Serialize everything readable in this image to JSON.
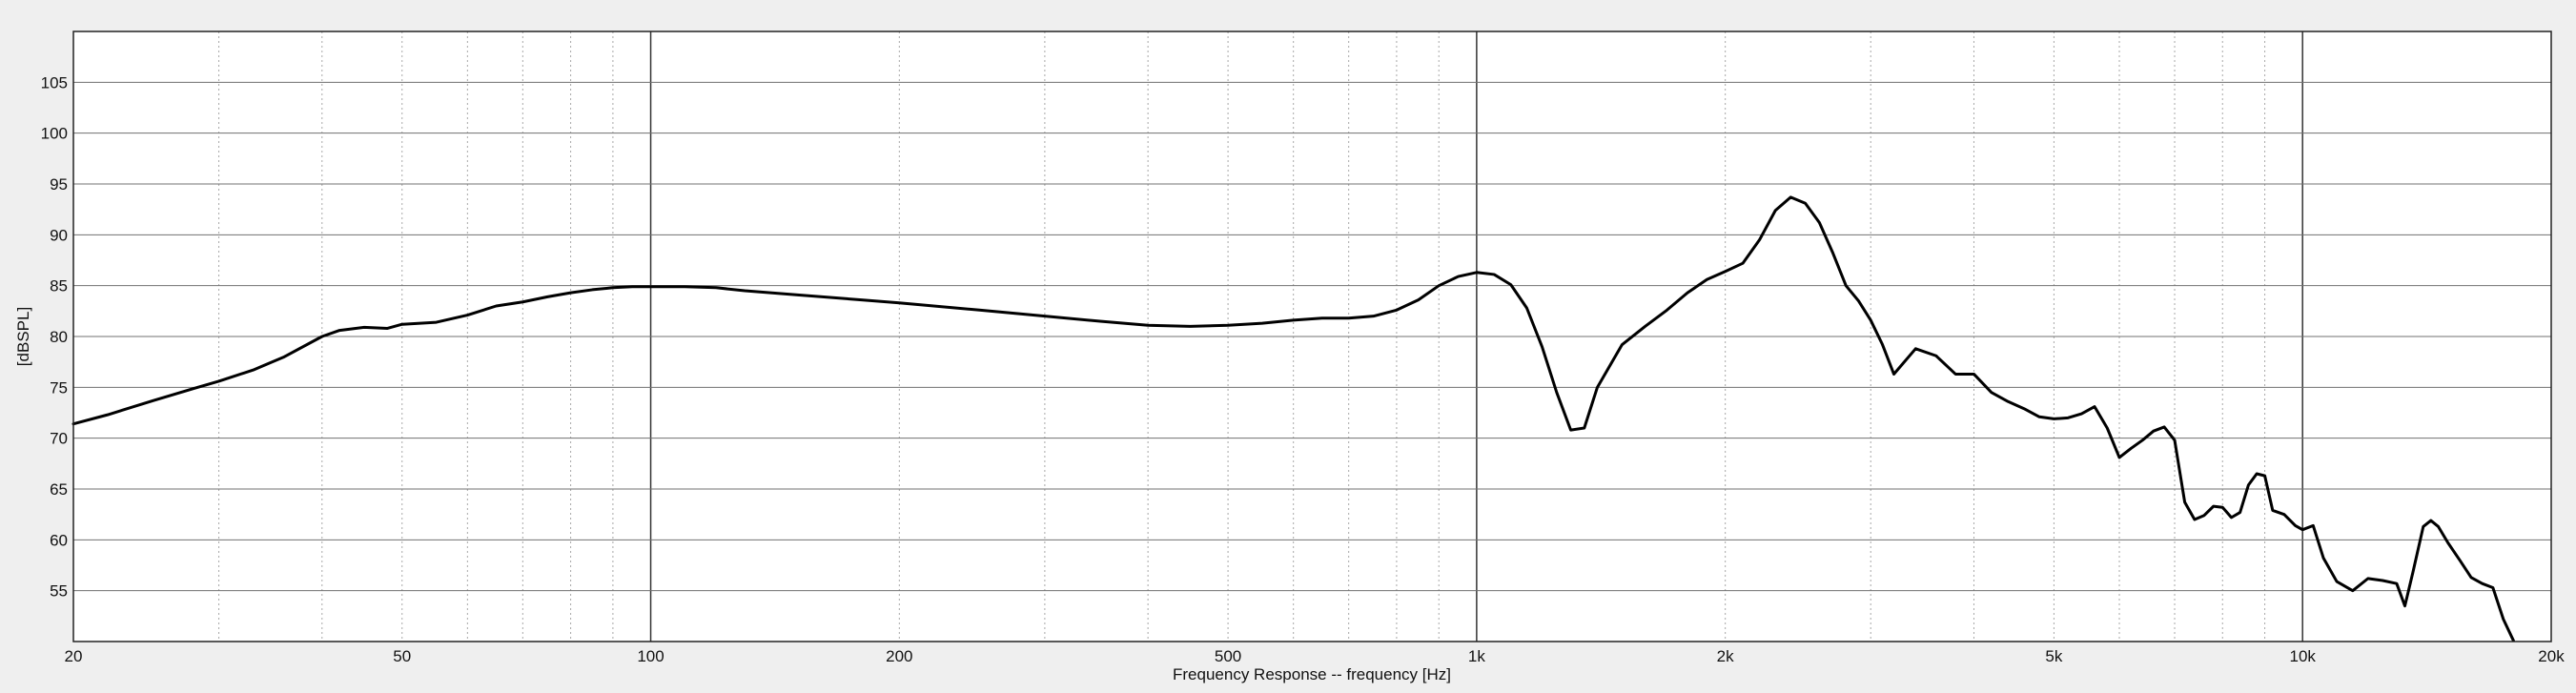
{
  "chart_data": {
    "type": "line",
    "title": "",
    "xlabel": "Frequency Response -- frequency [Hz]",
    "ylabel": "[dBSPL]",
    "x_scale": "log",
    "xlim": [
      20,
      20000
    ],
    "ylim": [
      50,
      110
    ],
    "grid": true,
    "x_ticks": [
      {
        "value": 20,
        "label": "20"
      },
      {
        "value": 50,
        "label": "50"
      },
      {
        "value": 100,
        "label": "100"
      },
      {
        "value": 200,
        "label": "200"
      },
      {
        "value": 500,
        "label": "500"
      },
      {
        "value": 1000,
        "label": "1k"
      },
      {
        "value": 2000,
        "label": "2k"
      },
      {
        "value": 5000,
        "label": "5k"
      },
      {
        "value": 10000,
        "label": "10k"
      },
      {
        "value": 20000,
        "label": "20k"
      }
    ],
    "y_ticks": [
      {
        "value": 55,
        "label": "55"
      },
      {
        "value": 60,
        "label": "60"
      },
      {
        "value": 65,
        "label": "65"
      },
      {
        "value": 70,
        "label": "70"
      },
      {
        "value": 75,
        "label": "75"
      },
      {
        "value": 80,
        "label": "80"
      },
      {
        "value": 85,
        "label": "85"
      },
      {
        "value": 90,
        "label": "90"
      },
      {
        "value": 95,
        "label": "95"
      },
      {
        "value": 100,
        "label": "100"
      },
      {
        "value": 105,
        "label": "105"
      }
    ],
    "colors": {
      "line": "#000000",
      "plot_bg": "#ffffff",
      "page_bg": "#efefef",
      "grid_major": "#707070",
      "grid_minor": "#a8a8a8"
    },
    "series": [
      {
        "x": [
          20,
          22,
          25,
          28,
          30,
          33,
          36,
          40,
          42,
          45,
          48,
          50,
          55,
          60,
          65,
          70,
          75,
          80,
          85,
          90,
          95,
          100,
          110,
          120,
          130,
          150,
          180,
          200,
          250,
          300,
          350,
          400,
          450,
          500,
          550,
          600,
          650,
          700,
          750,
          800,
          850,
          900,
          950,
          1000,
          1050,
          1100,
          1150,
          1200,
          1250,
          1300,
          1350,
          1400,
          1500,
          1600,
          1700,
          1800,
          1900,
          2000,
          2100,
          2200,
          2300,
          2400,
          2500,
          2600,
          2700,
          2800,
          2900,
          3000,
          3100,
          3200,
          3400,
          3600,
          3800,
          4000,
          4200,
          4400,
          4600,
          4800,
          5000,
          5200,
          5400,
          5600,
          5800,
          6000,
          6200,
          6400,
          6600,
          6800,
          7000,
          7200,
          7400,
          7600,
          7800,
          8000,
          8200,
          8400,
          8600,
          8800,
          9000,
          9200,
          9500,
          9800,
          10000,
          10300,
          10600,
          11000,
          11500,
          12000,
          12500,
          13000,
          13300,
          13600,
          14000,
          14300,
          14600,
          15000,
          15500,
          16000,
          16500,
          17000,
          17500,
          18000
        ],
        "y": [
          71.4,
          72.3,
          73.7,
          74.9,
          75.6,
          76.7,
          78.0,
          80.0,
          80.6,
          80.9,
          80.8,
          81.2,
          81.4,
          82.1,
          83.0,
          83.4,
          83.9,
          84.3,
          84.6,
          84.8,
          84.9,
          84.9,
          84.9,
          84.8,
          84.5,
          84.1,
          83.6,
          83.3,
          82.6,
          82.0,
          81.5,
          81.1,
          81.0,
          81.1,
          81.3,
          81.6,
          81.8,
          81.8,
          82.0,
          82.6,
          83.6,
          85.0,
          85.9,
          86.3,
          86.1,
          85.1,
          82.8,
          79.0,
          74.5,
          70.8,
          71.0,
          75.0,
          79.2,
          81.0,
          82.6,
          84.3,
          85.6,
          86.4,
          87.2,
          89.5,
          92.4,
          93.7,
          93.1,
          91.2,
          88.2,
          85.0,
          83.5,
          81.6,
          79.2,
          76.3,
          78.8,
          78.1,
          76.3,
          76.3,
          74.5,
          73.6,
          72.9,
          72.1,
          71.9,
          72.0,
          72.4,
          73.1,
          71.0,
          68.1,
          69.0,
          69.8,
          70.7,
          71.1,
          69.8,
          63.7,
          62.0,
          62.4,
          63.3,
          63.2,
          62.2,
          62.7,
          65.4,
          66.5,
          66.3,
          62.9,
          62.5,
          61.4,
          61.0,
          61.4,
          58.2,
          55.9,
          55.0,
          56.2,
          56.0,
          55.7,
          53.5,
          56.8,
          61.3,
          61.9,
          61.3,
          59.7,
          58.0,
          56.3,
          55.7,
          55.3,
          52.2,
          50.1
        ]
      }
    ]
  }
}
